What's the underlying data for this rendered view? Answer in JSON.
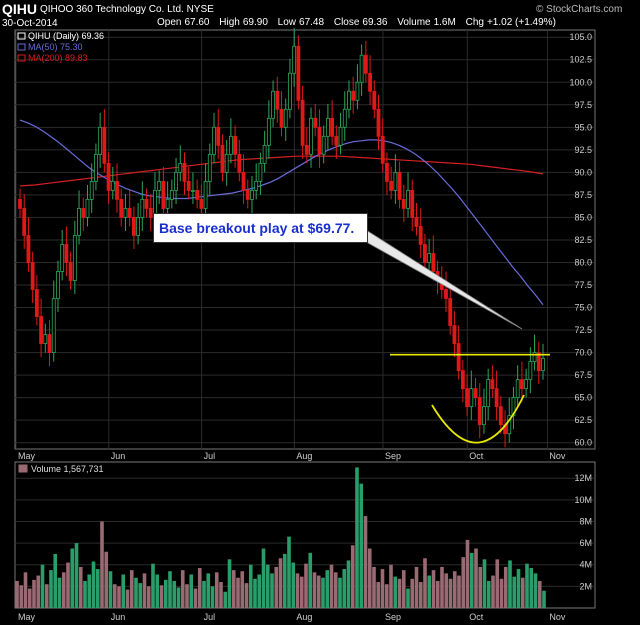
{
  "header": {
    "ticker": "QIHU",
    "company": "QIHOO 360 Technology Co. Ltd.  NYSE",
    "date": "30-Oct-2014",
    "open_label": "Open",
    "open": "67.60",
    "high_label": "High",
    "high": "69.90",
    "low_label": "Low",
    "low": "67.48",
    "close_label": "Close",
    "close": "69.36",
    "volume_label": "Volume",
    "volume": "1.6M",
    "chg_label": "Chg",
    "chg": "+1.02 (+1.49%)",
    "brand": "© StockCharts.com"
  },
  "annotation": "Base breakout play at $69.77.",
  "colors": {
    "up": "#2aa85a",
    "down": "#e01818",
    "ma50": "#6a6adc",
    "ma200": "#d42020",
    "breakout_line": "#e8e800",
    "vol_up": "#2a9e6a",
    "vol_down": "#9a6a72"
  },
  "chart_data": [
    {
      "type": "candlestick",
      "title": "",
      "legend": [
        {
          "name": "QIHU (Daily) 69.36",
          "color": "#ffffff"
        },
        {
          "name": "MA(50) 75.30",
          "color": "#6a6adc"
        },
        {
          "name": "MA(200) 89.83",
          "color": "#d42020"
        }
      ],
      "legend_position": "top-left",
      "x_tick_labels": [
        "May",
        "Jun",
        "Jul",
        "Aug",
        "Sep",
        "Oct",
        "Nov"
      ],
      "y_ticks": [
        60.0,
        62.5,
        65.0,
        67.5,
        70.0,
        72.5,
        75.0,
        77.5,
        80.0,
        82.5,
        85.0,
        87.5,
        90.0,
        92.5,
        95.0,
        97.5,
        100.0,
        102.5,
        105.0
      ],
      "ylim": [
        59.3,
        105.8
      ],
      "y_axis_side": "right",
      "grid": true,
      "close": [
        86,
        83,
        80,
        77,
        74,
        71,
        72,
        70,
        76,
        79,
        82,
        80,
        78,
        83,
        86,
        85,
        87,
        89,
        92,
        95,
        91,
        88,
        89,
        87,
        85,
        86,
        85,
        83,
        85,
        87,
        86,
        85,
        88,
        89,
        86,
        87,
        88,
        90,
        91,
        89,
        88,
        88,
        87,
        86,
        89,
        92,
        95,
        93,
        90,
        92,
        94,
        92,
        90,
        88,
        87,
        88,
        89,
        91,
        93,
        96,
        99,
        97,
        95,
        97,
        101,
        104,
        98,
        93,
        92,
        96,
        95,
        92,
        94,
        96,
        94,
        93,
        95,
        97,
        99,
        98,
        100,
        103,
        101,
        99,
        97,
        94,
        91,
        89,
        88,
        90,
        87,
        86,
        88,
        85,
        84,
        82,
        80,
        81,
        79,
        78,
        77,
        76,
        73,
        71,
        68,
        66,
        64,
        66,
        65,
        62,
        64,
        67,
        66,
        64,
        62,
        61,
        63,
        65,
        67,
        66,
        67,
        69,
        70,
        68,
        69.36
      ],
      "ma50": [
        95.8,
        95.5,
        95.1,
        94.6,
        94.0,
        93.4,
        92.7,
        92.0,
        91.3,
        90.6,
        90.0,
        89.5,
        89.0,
        88.6,
        88.2,
        87.9,
        87.6,
        87.4,
        87.3,
        87.2,
        87.1,
        87.1,
        87.1,
        87.2,
        87.3,
        87.4,
        87.5,
        87.6,
        87.7,
        87.9,
        88.1,
        88.3,
        88.6,
        88.9,
        89.3,
        89.8,
        90.3,
        90.8,
        91.3,
        91.8,
        92.2,
        92.6,
        92.9,
        93.2,
        93.4,
        93.5,
        93.6,
        93.6,
        93.5,
        93.3,
        93.0,
        92.6,
        92.1,
        91.5,
        90.8,
        90.0,
        89.1,
        88.2,
        87.2,
        86.1,
        85.0,
        83.9,
        82.8,
        81.7,
        80.6,
        79.5,
        78.5,
        77.4,
        76.4,
        75.3
      ],
      "ma200": [
        88.5,
        88.6,
        88.8,
        89.0,
        89.2,
        89.4,
        89.6,
        89.8,
        90.0,
        90.2,
        90.4,
        90.6,
        90.8,
        91.0,
        91.2,
        91.4,
        91.5,
        91.6,
        91.7,
        91.8,
        91.8,
        91.8,
        91.8,
        91.7,
        91.6,
        91.5,
        91.4,
        91.3,
        91.2,
        91.1,
        91.0,
        90.9,
        90.7,
        90.5,
        90.3,
        90.1,
        89.83
      ],
      "breakout_level": 69.77,
      "volume": {
        "label": "Volume 1,567,731",
        "y_ticks_label": [
          "2M",
          "4M",
          "6M",
          "8M",
          "10M",
          "12M"
        ],
        "y_ticks": [
          2,
          4,
          6,
          8,
          10,
          12
        ],
        "ylim": [
          0,
          13.5
        ],
        "values": [
          2.5,
          2.1,
          3.3,
          1.8,
          2.6,
          3.0,
          4.0,
          2.2,
          3.5,
          5.0,
          2.8,
          3.3,
          4.2,
          5.5,
          6.0,
          3.8,
          2.5,
          3.1,
          4.3,
          3.6,
          8.0,
          5.2,
          3.4,
          2.2,
          2.0,
          3.1,
          1.7,
          3.5,
          2.8,
          2.3,
          3.2,
          2.0,
          4.1,
          3.1,
          2.1,
          2.6,
          3.4,
          2.5,
          1.9,
          3.5,
          2.2,
          3.1,
          1.8,
          3.7,
          2.5,
          3.2,
          2.0,
          3.3,
          2.4,
          1.5,
          4.5,
          3.5,
          2.8,
          3.4,
          2.3,
          4.0,
          2.7,
          3.1,
          5.5,
          4.0,
          3.2,
          3.8,
          4.6,
          5.0,
          6.6,
          4.2,
          3.2,
          2.9,
          4.1,
          5.1,
          3.3,
          3.0,
          2.8,
          3.5,
          4.0,
          3.3,
          2.8,
          3.6,
          4.4,
          5.8,
          13.0,
          11.5,
          8.5,
          5.5,
          3.8,
          2.4,
          3.6,
          2.2,
          4.0,
          2.9,
          2.7,
          3.5,
          1.8,
          2.7,
          3.8,
          2.4,
          4.6,
          3.0,
          3.5,
          2.5,
          3.8,
          3.2,
          2.7,
          3.4,
          3.0,
          4.7,
          6.3,
          5.1,
          5.5,
          3.8,
          4.5,
          2.5,
          3.0,
          4.5,
          2.7,
          3.8,
          4.4,
          2.9,
          3.6,
          2.8,
          4.1,
          3.7,
          3.2,
          2.5,
          1.6
        ]
      }
    }
  ]
}
